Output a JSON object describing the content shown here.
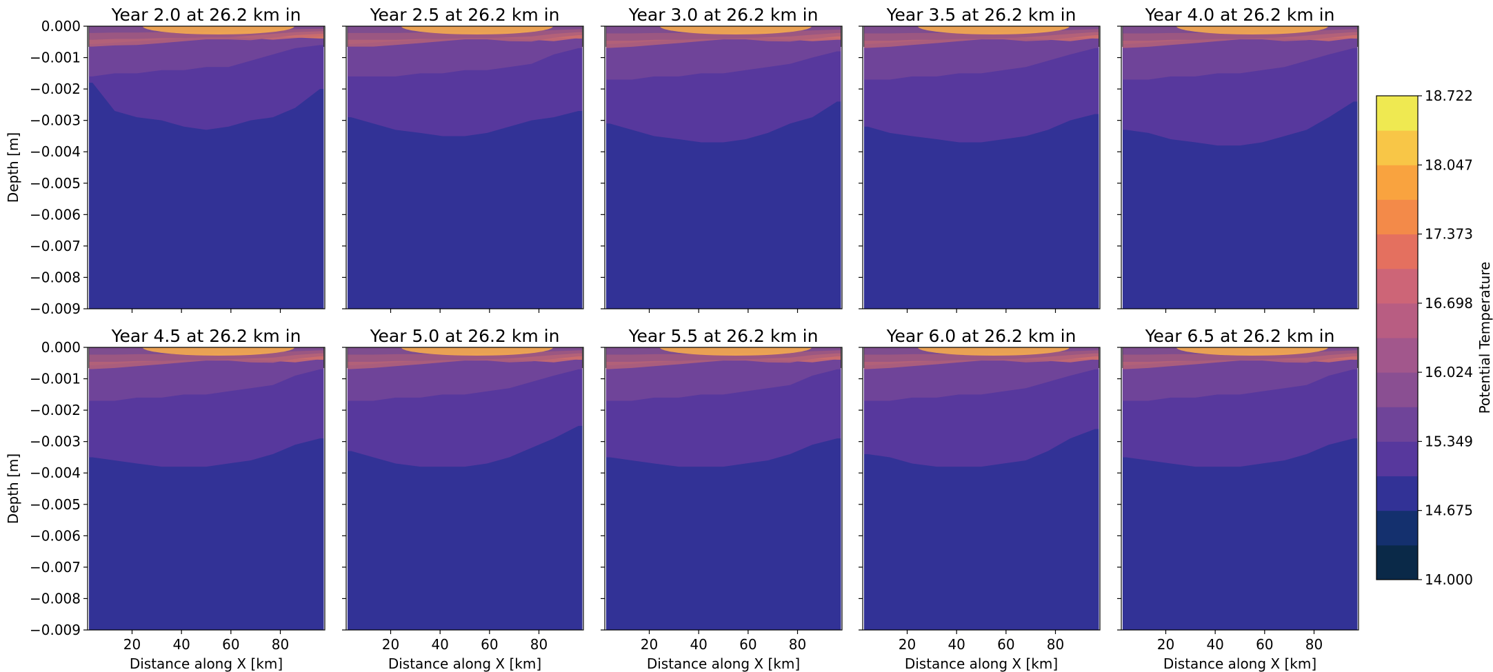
{
  "chart_data": {
    "type": "contour",
    "layout": "2x5 small multiples",
    "panels": [
      {
        "title": "Year 2.0 at 26.2 km in",
        "deep_boundary_depth": [
          -0.0018,
          -0.0027,
          -0.0029,
          -0.003,
          -0.0032,
          -0.0033,
          -0.0032,
          -0.003,
          -0.0029,
          -0.0026,
          -0.002
        ],
        "mid_boundary_depth": [
          -0.0016,
          -0.0015,
          -0.0015,
          -0.0014,
          -0.0014,
          -0.0013,
          -0.0013,
          -0.0011,
          -0.0009,
          -0.0007,
          -0.0006
        ]
      },
      {
        "title": "Year 2.5 at 26.2 km in",
        "deep_boundary_depth": [
          -0.0029,
          -0.0031,
          -0.0033,
          -0.0034,
          -0.0035,
          -0.0035,
          -0.0034,
          -0.0032,
          -0.003,
          -0.0029,
          -0.0027
        ],
        "mid_boundary_depth": [
          -0.0016,
          -0.0016,
          -0.0016,
          -0.0015,
          -0.0015,
          -0.0014,
          -0.0014,
          -0.0013,
          -0.0012,
          -0.0009,
          -0.0007
        ]
      },
      {
        "title": "Year 3.0 at 26.2 km in",
        "deep_boundary_depth": [
          -0.0031,
          -0.0033,
          -0.0035,
          -0.0036,
          -0.0037,
          -0.0037,
          -0.0036,
          -0.0034,
          -0.0031,
          -0.0029,
          -0.0024
        ],
        "mid_boundary_depth": [
          -0.0017,
          -0.0017,
          -0.0016,
          -0.0016,
          -0.0015,
          -0.0015,
          -0.0014,
          -0.0013,
          -0.0012,
          -0.001,
          -0.0008
        ]
      },
      {
        "title": "Year 3.5 at 26.2 km in",
        "deep_boundary_depth": [
          -0.0032,
          -0.0034,
          -0.0035,
          -0.0036,
          -0.0037,
          -0.0037,
          -0.0036,
          -0.0035,
          -0.0033,
          -0.003,
          -0.0028
        ],
        "mid_boundary_depth": [
          -0.0017,
          -0.0017,
          -0.0016,
          -0.0016,
          -0.0015,
          -0.0015,
          -0.0014,
          -0.0013,
          -0.0011,
          -0.0009,
          -0.0007
        ]
      },
      {
        "title": "Year 4.0 at 26.2 km in",
        "deep_boundary_depth": [
          -0.0033,
          -0.0034,
          -0.0036,
          -0.0037,
          -0.0038,
          -0.0038,
          -0.0037,
          -0.0035,
          -0.0033,
          -0.0029,
          -0.0024
        ],
        "mid_boundary_depth": [
          -0.0017,
          -0.0017,
          -0.0016,
          -0.0016,
          -0.0015,
          -0.0015,
          -0.0014,
          -0.0013,
          -0.0011,
          -0.0009,
          -0.0007
        ]
      },
      {
        "title": "Year 4.5 at 26.2 km in",
        "deep_boundary_depth": [
          -0.0035,
          -0.0036,
          -0.0037,
          -0.0038,
          -0.0038,
          -0.0038,
          -0.0037,
          -0.0036,
          -0.0034,
          -0.0031,
          -0.0029
        ],
        "mid_boundary_depth": [
          -0.0017,
          -0.0017,
          -0.0016,
          -0.0016,
          -0.0015,
          -0.0015,
          -0.0014,
          -0.0013,
          -0.0012,
          -0.0009,
          -0.0007
        ]
      },
      {
        "title": "Year 5.0 at 26.2 km in",
        "deep_boundary_depth": [
          -0.0033,
          -0.0035,
          -0.0037,
          -0.0038,
          -0.0038,
          -0.0038,
          -0.0037,
          -0.0035,
          -0.0032,
          -0.0029,
          -0.0025
        ],
        "mid_boundary_depth": [
          -0.0017,
          -0.0017,
          -0.0016,
          -0.0016,
          -0.0015,
          -0.0015,
          -0.0014,
          -0.0013,
          -0.0011,
          -0.0009,
          -0.0007
        ]
      },
      {
        "title": "Year 5.5 at 26.2 km in",
        "deep_boundary_depth": [
          -0.0035,
          -0.0036,
          -0.0037,
          -0.0038,
          -0.0038,
          -0.0038,
          -0.0037,
          -0.0036,
          -0.0034,
          -0.0031,
          -0.0029
        ],
        "mid_boundary_depth": [
          -0.0017,
          -0.0017,
          -0.0016,
          -0.0016,
          -0.0015,
          -0.0015,
          -0.0014,
          -0.0013,
          -0.0012,
          -0.0009,
          -0.0007
        ]
      },
      {
        "title": "Year 6.0 at 26.2 km in",
        "deep_boundary_depth": [
          -0.0034,
          -0.0035,
          -0.0037,
          -0.0038,
          -0.0038,
          -0.0038,
          -0.0037,
          -0.0036,
          -0.0033,
          -0.0029,
          -0.0026
        ],
        "mid_boundary_depth": [
          -0.0017,
          -0.0017,
          -0.0016,
          -0.0016,
          -0.0015,
          -0.0015,
          -0.0014,
          -0.0013,
          -0.0011,
          -0.0009,
          -0.0007
        ]
      },
      {
        "title": "Year 6.5 at 26.2 km in",
        "deep_boundary_depth": [
          -0.0035,
          -0.0036,
          -0.0037,
          -0.0038,
          -0.0038,
          -0.0038,
          -0.0037,
          -0.0036,
          -0.0034,
          -0.0031,
          -0.0029
        ],
        "mid_boundary_depth": [
          -0.0017,
          -0.0017,
          -0.0016,
          -0.0016,
          -0.0015,
          -0.0015,
          -0.0014,
          -0.0013,
          -0.0012,
          -0.0009,
          -0.0007
        ]
      }
    ],
    "x_sample_km": [
      4,
      13,
      22,
      32,
      41,
      50,
      59,
      68,
      77,
      86,
      96
    ],
    "xlabel": "Distance along X [km]",
    "ylabel": "Depth [m]",
    "xlim": [
      2,
      98
    ],
    "ylim": [
      -0.009,
      0
    ],
    "x_ticks": [
      "20",
      "40",
      "60",
      "80"
    ],
    "x_tick_values": [
      20,
      40,
      60,
      80
    ],
    "y_ticks": [
      "0.000",
      "−0.001",
      "−0.002",
      "−0.003",
      "−0.004",
      "−0.005",
      "−0.006",
      "−0.007",
      "−0.008",
      "−0.009"
    ],
    "y_tick_values": [
      0,
      -0.001,
      -0.002,
      -0.003,
      -0.004,
      -0.005,
      -0.006,
      -0.007,
      -0.008,
      -0.009
    ],
    "colorbar": {
      "label": "Potential Temperature",
      "tick_labels": [
        "18.722",
        "18.047",
        "17.373",
        "16.698",
        "16.024",
        "15.349",
        "14.675",
        "14.000"
      ],
      "tick_values": [
        18.722,
        18.047,
        17.373,
        16.698,
        16.024,
        15.349,
        14.675,
        14.0
      ],
      "range": [
        14.0,
        18.722
      ],
      "levels": 14,
      "colors": [
        "#0a2948",
        "#14306e",
        "#323296",
        "#57389d",
        "#6f4499",
        "#8a4f92",
        "#a2578c",
        "#b85d82",
        "#cd6577",
        "#e4705f",
        "#f38a49",
        "#f9a33f",
        "#f8c647",
        "#efe951"
      ]
    },
    "surface_band_colors": [
      "#f9a646",
      "#ef8c50",
      "#de7b5e",
      "#c96b6f",
      "#b0607a",
      "#985683",
      "#7b4c90"
    ],
    "colormap": "thermal",
    "grid": false
  }
}
